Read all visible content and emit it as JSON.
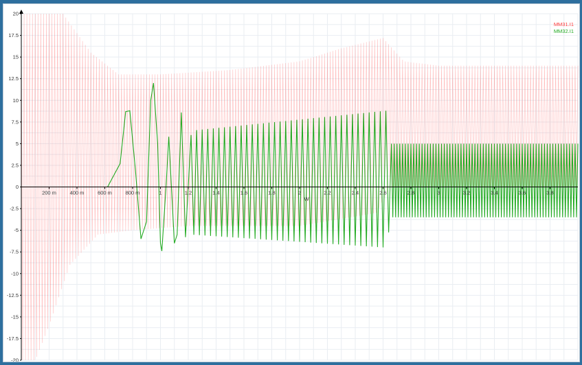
{
  "chart_data": {
    "type": "line",
    "title": "",
    "xlabel": "W",
    "ylabel": "",
    "xlim": [
      0,
      4.0
    ],
    "ylim": [
      -20,
      20
    ],
    "grid": true,
    "legend_position": "top-right",
    "x_tick_labels": [
      {
        "value": 0.2,
        "label": "200 m"
      },
      {
        "value": 0.4,
        "label": "400 m"
      },
      {
        "value": 0.6,
        "label": "600 m"
      },
      {
        "value": 0.8,
        "label": "800 m"
      },
      {
        "value": 1.0,
        "label": "1"
      },
      {
        "value": 1.2,
        "label": "1.2"
      },
      {
        "value": 1.4,
        "label": "1.4"
      },
      {
        "value": 1.6,
        "label": "1.6"
      },
      {
        "value": 1.8,
        "label": "1.8"
      },
      {
        "value": 2.0,
        "label": "2"
      },
      {
        "value": 2.2,
        "label": "2.2"
      },
      {
        "value": 2.4,
        "label": "2.4"
      },
      {
        "value": 2.6,
        "label": "2.6"
      },
      {
        "value": 2.8,
        "label": "2.8"
      },
      {
        "value": 3.0,
        "label": "3"
      },
      {
        "value": 3.2,
        "label": "3.2"
      },
      {
        "value": 3.4,
        "label": "3.4"
      },
      {
        "value": 3.6,
        "label": "3.6"
      },
      {
        "value": 3.8,
        "label": "3.8"
      }
    ],
    "y_tick_labels": [
      {
        "value": 20,
        "label": "20"
      },
      {
        "value": 17.5,
        "label": "17.5"
      },
      {
        "value": 15,
        "label": "15"
      },
      {
        "value": 12.5,
        "label": "12.5"
      },
      {
        "value": 10,
        "label": "10"
      },
      {
        "value": 7.5,
        "label": "7.5"
      },
      {
        "value": 5,
        "label": "5"
      },
      {
        "value": 2.5,
        "label": "2.5"
      },
      {
        "value": 0,
        "label": "0"
      },
      {
        "value": -2.5,
        "label": "-2.5"
      },
      {
        "value": -5,
        "label": "-5"
      },
      {
        "value": -7.5,
        "label": "-7.5"
      },
      {
        "value": -10,
        "label": "-10"
      },
      {
        "value": -12.5,
        "label": "-12.5"
      },
      {
        "value": -15,
        "label": "-15"
      },
      {
        "value": -17.5,
        "label": "-17.5"
      },
      {
        "value": -20,
        "label": "-20"
      }
    ],
    "series": [
      {
        "name": "MM31.I1",
        "color": "#ff3b3b",
        "style": "oscillating",
        "oscillation_period": 0.02,
        "envelope_upper": [
          [
            0.0,
            20
          ],
          [
            0.3,
            20
          ],
          [
            0.5,
            15.5
          ],
          [
            0.7,
            13
          ],
          [
            1.0,
            13
          ],
          [
            1.5,
            13.5
          ],
          [
            2.0,
            14.5
          ],
          [
            2.3,
            16
          ],
          [
            2.6,
            17.2
          ],
          [
            2.75,
            14.5
          ],
          [
            3.0,
            14
          ],
          [
            4.0,
            14
          ]
        ],
        "envelope_lower": [
          [
            0.0,
            -20
          ],
          [
            0.1,
            -20
          ],
          [
            0.2,
            -16
          ],
          [
            0.35,
            -9
          ],
          [
            0.55,
            -5.5
          ],
          [
            0.8,
            -5
          ],
          [
            1.2,
            -4.5
          ],
          [
            2.0,
            -4.5
          ],
          [
            2.55,
            -3
          ],
          [
            2.65,
            0
          ],
          [
            3.0,
            0
          ],
          [
            4.0,
            0
          ]
        ]
      },
      {
        "name": "MM32.I1",
        "color": "#22aa22",
        "style": "waveform",
        "segments": [
          {
            "type": "points",
            "points": [
              [
                0.62,
                0
              ],
              [
                0.71,
                2.7
              ],
              [
                0.75,
                8.7
              ],
              [
                0.78,
                8.8
              ],
              [
                0.82,
                2.0
              ],
              [
                0.86,
                -6.0
              ],
              [
                0.9,
                -4.0
              ],
              [
                0.93,
                10.0
              ],
              [
                0.95,
                12.0
              ],
              [
                0.98,
                5.0
              ],
              [
                1.0,
                -6.5
              ],
              [
                1.01,
                -7.4
              ],
              [
                1.04,
                0
              ],
              [
                1.06,
                5.8
              ],
              [
                1.1,
                -6.5
              ],
              [
                1.12,
                -5.5
              ],
              [
                1.15,
                8.6
              ],
              [
                1.18,
                -5.8
              ],
              [
                1.22,
                6.0
              ]
            ]
          },
          {
            "type": "oscillation",
            "x_start": 1.22,
            "x_end": 2.62,
            "period": 0.04,
            "upper_start": 6.5,
            "upper_end": 8.8,
            "lower_start": -5.5,
            "lower_end": -7.0
          },
          {
            "type": "oscillation",
            "x_start": 2.62,
            "x_end": 2.66,
            "period": 0.04,
            "upper_start": 8.8,
            "upper_end": 5.0,
            "lower_start": -7.0,
            "lower_end": -3.5
          },
          {
            "type": "oscillation",
            "x_start": 2.66,
            "x_end": 4.0,
            "period": 0.02,
            "upper_start": 5.0,
            "upper_end": 5.0,
            "lower_start": -3.5,
            "lower_end": -3.5
          }
        ]
      }
    ]
  }
}
